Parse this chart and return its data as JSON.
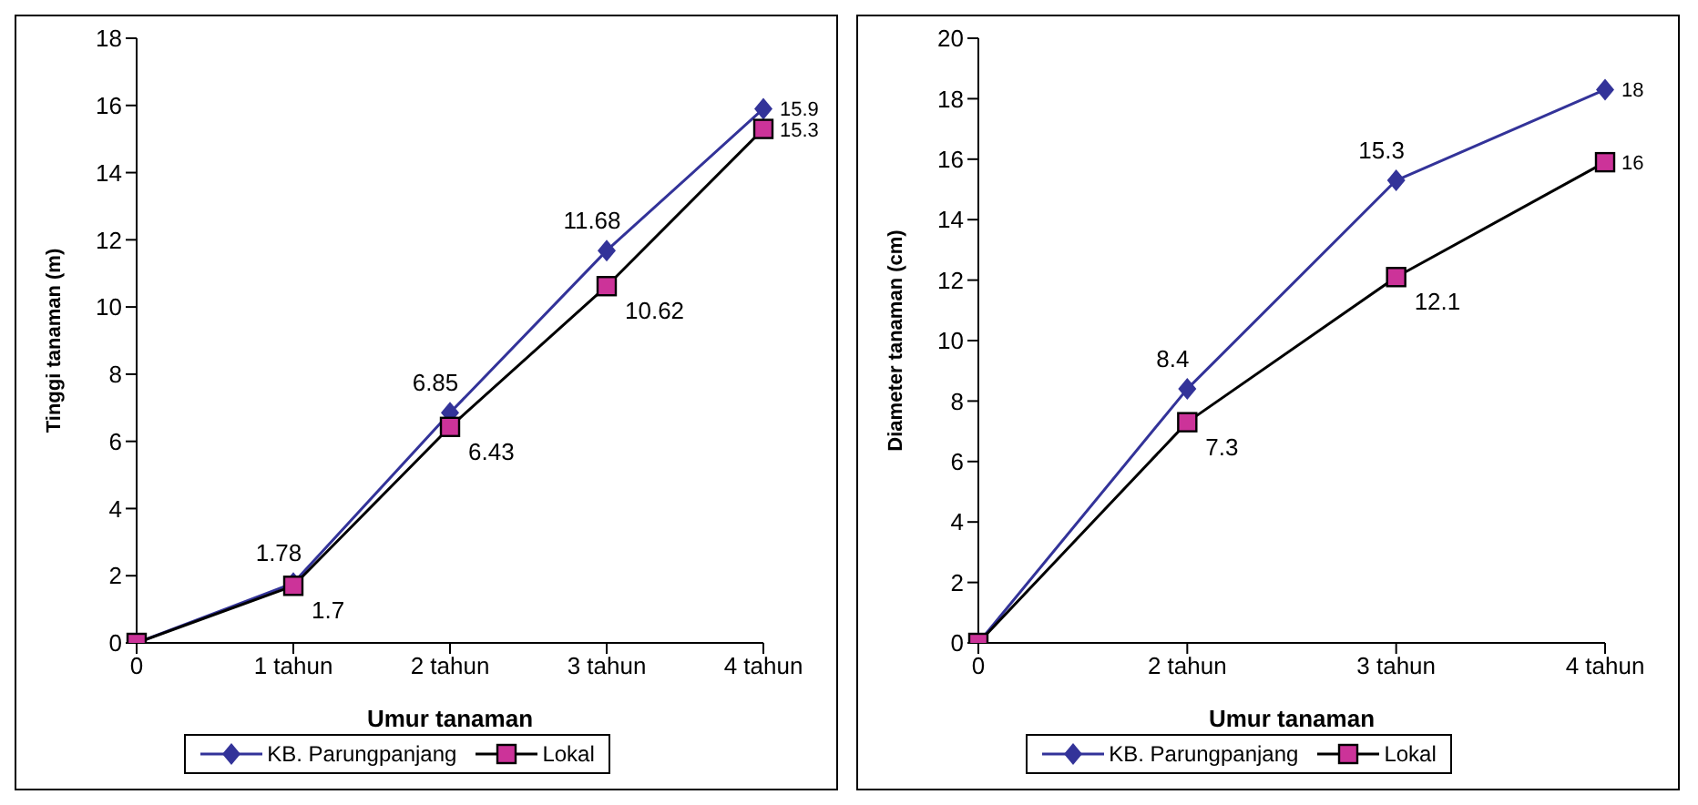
{
  "chart_data": [
    {
      "type": "line",
      "xlabel": "Umur tanaman",
      "ylabel": "Tinggi tanaman (m)",
      "categories": [
        "0",
        "1 tahun",
        "2 tahun",
        "3 tahun",
        "4 tahun"
      ],
      "ylim": [
        0,
        18
      ],
      "yticks": [
        0,
        2,
        4,
        6,
        8,
        10,
        12,
        14,
        16,
        18
      ],
      "grid": false,
      "legend": "bottom",
      "series": [
        {
          "name": "KB. Parungpanjang",
          "color": "#333399",
          "marker": "diamond",
          "values": [
            0,
            1.78,
            6.85,
            11.68,
            15.9
          ],
          "value_labels": [
            null,
            "1.78",
            "6.85",
            "11.68",
            "15.9"
          ]
        },
        {
          "name": "Lokal",
          "color": "#cc3399",
          "marker": "square",
          "values": [
            0,
            1.7,
            6.43,
            10.62,
            15.3
          ],
          "value_labels": [
            null,
            "1.7",
            "6.43",
            "10.62",
            "15.3"
          ]
        }
      ]
    },
    {
      "type": "line",
      "xlabel": "Umur tanaman",
      "ylabel": "Diameter tanaman (cm)",
      "categories": [
        "0",
        "2 tahun",
        "3 tahun",
        "4 tahun"
      ],
      "ylim": [
        0,
        20
      ],
      "yticks": [
        0,
        2,
        4,
        6,
        8,
        10,
        12,
        14,
        16,
        18,
        20
      ],
      "grid": false,
      "legend": "bottom",
      "series": [
        {
          "name": "KB. Parungpanjang",
          "color": "#333399",
          "marker": "diamond",
          "values": [
            0,
            8.4,
            15.3,
            18.3
          ],
          "value_labels": [
            null,
            "8.4",
            "15.3",
            "18"
          ]
        },
        {
          "name": "Lokal",
          "color": "#cc3399",
          "marker": "square",
          "values": [
            0,
            7.3,
            12.1,
            15.9
          ],
          "value_labels": [
            null,
            "7.3",
            "12.1",
            "16"
          ]
        }
      ]
    }
  ]
}
